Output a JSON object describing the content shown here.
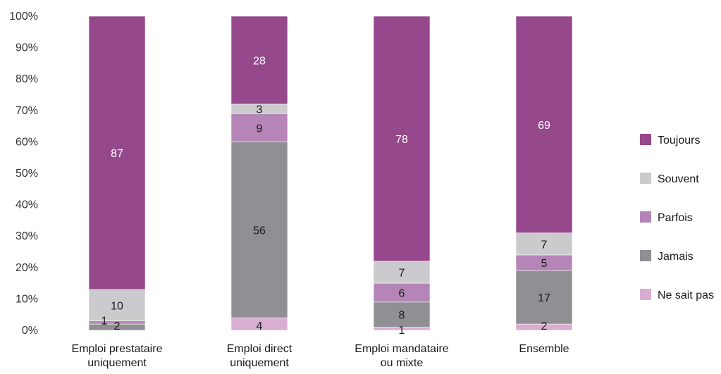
{
  "chart_data": {
    "type": "bar",
    "stacked": true,
    "normalized": true,
    "categories": [
      [
        "Emploi prestataire",
        "uniquement"
      ],
      [
        "Emploi direct",
        "uniquement"
      ],
      [
        "Emploi mandataire",
        "ou mixte"
      ],
      [
        "Ensemble"
      ]
    ],
    "series": [
      {
        "name": "Ne sait pas",
        "color": "#d9aed2",
        "label_color": "#1a1a1a",
        "values": [
          0,
          4,
          1,
          2
        ]
      },
      {
        "name": "Jamais",
        "color": "#8f8f94",
        "label_color": "#1a1a1a",
        "values": [
          2,
          56,
          8,
          17
        ]
      },
      {
        "name": "Parfois",
        "color": "#b585b8",
        "label_color": "#1a1a1a",
        "values": [
          1,
          9,
          6,
          5
        ]
      },
      {
        "name": "Souvent",
        "color": "#cbcbcd",
        "label_color": "#1a1a1a",
        "values": [
          10,
          3,
          7,
          7
        ]
      },
      {
        "name": "Toujours",
        "color": "#96488c",
        "label_color": "#ffffff",
        "values": [
          87,
          28,
          78,
          69
        ]
      }
    ],
    "legend_order": [
      "Toujours",
      "Souvent",
      "Parfois",
      "Jamais",
      "Ne sait pas"
    ],
    "y_ticks": [
      "0%",
      "10%",
      "20%",
      "30%",
      "40%",
      "50%",
      "60%",
      "70%",
      "80%",
      "90%",
      "100%"
    ],
    "ylim": [
      0,
      100
    ],
    "legend_position": "right",
    "grid": false
  }
}
